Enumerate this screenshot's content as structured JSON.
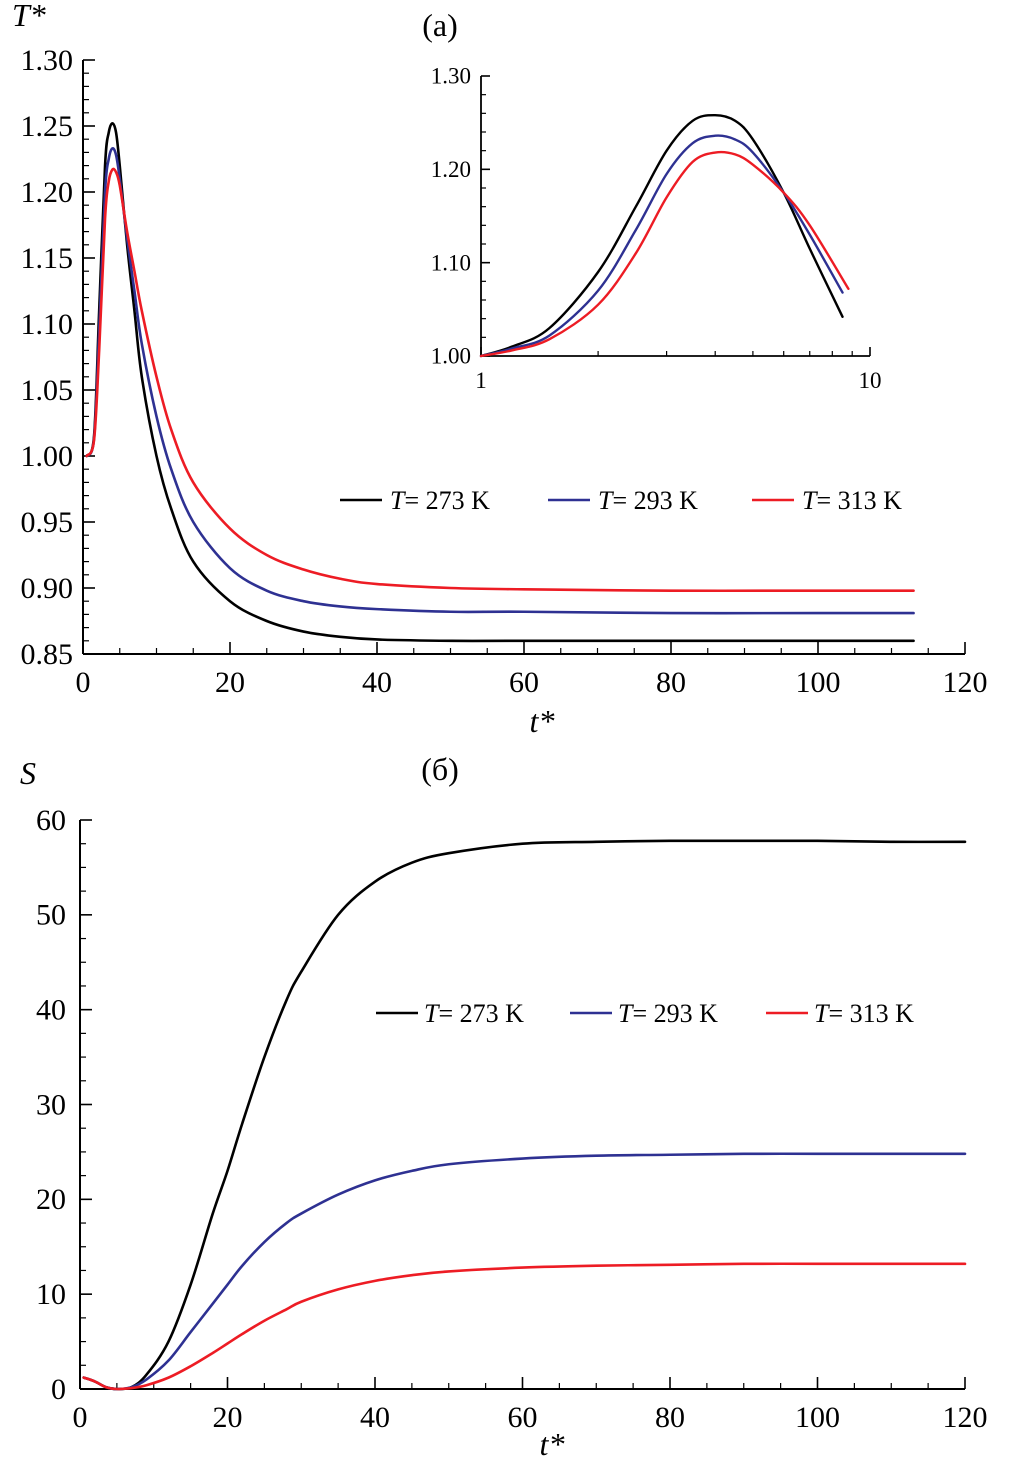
{
  "figure": {
    "background": "#ffffff",
    "axis_color": "#000000"
  },
  "chart_data": [
    {
      "id": "a",
      "type": "line",
      "panel_label": "(a)",
      "xlabel": "t*",
      "ylabel": "T*",
      "xlim": [
        0,
        120
      ],
      "ylim": [
        0.85,
        1.3
      ],
      "xticks": [
        0,
        20,
        40,
        60,
        80,
        100,
        120
      ],
      "yticks": [
        0.85,
        0.9,
        0.95,
        1.0,
        1.05,
        1.1,
        1.15,
        1.2,
        1.25,
        1.3
      ],
      "ytick_labels": [
        "0.85",
        "0.90",
        "0.95",
        "1.00",
        "1.05",
        "1.10",
        "1.15",
        "1.20",
        "1.25",
        "1.30"
      ],
      "legend": {
        "placement": "right-middle",
        "entries": [
          {
            "var": "T",
            "text": "= 273 K"
          },
          {
            "var": "T",
            "text": "= 293 K"
          },
          {
            "var": "T",
            "text": "= 313 K"
          }
        ]
      },
      "series": [
        {
          "name": "T = 273 K",
          "color": "#000000",
          "x": [
            0.5,
            1.5,
            2.2,
            3.0,
            3.5,
            4.0,
            4.5,
            5.0,
            6.0,
            7.0,
            8.0,
            10.0,
            12.0,
            15.0,
            20.0,
            25.0,
            30.0,
            35.0,
            40.0,
            50.0,
            60.0,
            80.0,
            100.0,
            113.0
          ],
          "y": [
            1.0,
            1.015,
            1.11,
            1.22,
            1.245,
            1.252,
            1.245,
            1.22,
            1.16,
            1.11,
            1.06,
            1.0,
            0.96,
            0.92,
            0.89,
            0.875,
            0.867,
            0.863,
            0.861,
            0.86,
            0.86,
            0.86,
            0.86,
            0.86
          ]
        },
        {
          "name": "T = 293 K",
          "color": "#2e3192",
          "x": [
            0.5,
            1.5,
            2.2,
            3.0,
            3.5,
            4.0,
            4.5,
            5.0,
            6.0,
            7.0,
            8.0,
            10.0,
            12.0,
            15.0,
            20.0,
            25.0,
            30.0,
            35.0,
            40.0,
            50.0,
            60.0,
            80.0,
            100.0,
            113.0
          ],
          "y": [
            1.0,
            1.013,
            1.095,
            1.2,
            1.225,
            1.233,
            1.228,
            1.21,
            1.165,
            1.125,
            1.085,
            1.03,
            0.99,
            0.95,
            0.915,
            0.898,
            0.89,
            0.886,
            0.884,
            0.882,
            0.882,
            0.881,
            0.881,
            0.881
          ]
        },
        {
          "name": "T = 313 K",
          "color": "#ed1c24",
          "x": [
            0.5,
            1.5,
            2.2,
            3.0,
            3.5,
            4.0,
            4.5,
            5.0,
            6.0,
            7.0,
            8.0,
            10.0,
            12.0,
            15.0,
            20.0,
            25.0,
            30.0,
            35.0,
            40.0,
            50.0,
            60.0,
            80.0,
            100.0,
            113.0
          ],
          "y": [
            1.0,
            1.012,
            1.08,
            1.18,
            1.208,
            1.217,
            1.215,
            1.205,
            1.17,
            1.14,
            1.11,
            1.06,
            1.02,
            0.98,
            0.945,
            0.925,
            0.914,
            0.907,
            0.903,
            0.9,
            0.899,
            0.898,
            0.898,
            0.898
          ]
        }
      ]
    },
    {
      "id": "a-inset",
      "type": "line",
      "xscale": "log",
      "xlim": [
        1,
        10
      ],
      "ylim": [
        1.0,
        1.3
      ],
      "xticks": [
        1,
        10
      ],
      "xtick_labels": [
        "1",
        "10"
      ],
      "yticks": [
        1.0,
        1.1,
        1.2,
        1.3
      ],
      "ytick_labels": [
        "1.00",
        "1.10",
        "1.20",
        "1.30"
      ],
      "series": [
        {
          "name": "T = 273 K",
          "color": "#000000",
          "x": [
            1.0,
            1.2,
            1.5,
            2.0,
            2.5,
            3.0,
            3.5,
            4.0,
            4.5,
            5.0,
            6.0,
            7.0,
            8.5
          ],
          "y": [
            1.0,
            1.01,
            1.03,
            1.09,
            1.16,
            1.22,
            1.252,
            1.258,
            1.252,
            1.232,
            1.175,
            1.115,
            1.042
          ]
        },
        {
          "name": "T = 293 K",
          "color": "#2e3192",
          "x": [
            1.0,
            1.2,
            1.5,
            2.0,
            2.5,
            3.0,
            3.5,
            4.0,
            4.5,
            5.0,
            6.0,
            7.0,
            8.5
          ],
          "y": [
            1.0,
            1.008,
            1.022,
            1.07,
            1.135,
            1.195,
            1.228,
            1.236,
            1.232,
            1.218,
            1.175,
            1.13,
            1.068
          ]
        },
        {
          "name": "T = 313 K",
          "color": "#ed1c24",
          "x": [
            1.0,
            1.2,
            1.5,
            2.0,
            2.5,
            3.0,
            3.5,
            4.0,
            4.5,
            5.0,
            6.0,
            7.0,
            8.8
          ],
          "y": [
            1.0,
            1.006,
            1.018,
            1.055,
            1.11,
            1.17,
            1.208,
            1.218,
            1.216,
            1.205,
            1.175,
            1.14,
            1.072
          ]
        }
      ]
    },
    {
      "id": "b",
      "type": "line",
      "panel_label": "(б)",
      "xlabel": "t*",
      "ylabel": "S",
      "xlim": [
        0,
        120
      ],
      "ylim": [
        0,
        60
      ],
      "xticks": [
        0,
        20,
        40,
        60,
        80,
        100,
        120
      ],
      "yticks": [
        0,
        10,
        20,
        30,
        40,
        50,
        60
      ],
      "ytick_labels": [
        "0",
        "10",
        "20",
        "30",
        "40",
        "50",
        "60"
      ],
      "legend": {
        "placement": "right-middle",
        "entries": [
          {
            "var": "T",
            "text": "= 273 K"
          },
          {
            "var": "T",
            "text": "= 293 K"
          },
          {
            "var": "T",
            "text": "= 313 K"
          }
        ]
      },
      "series": [
        {
          "name": "T = 273 K",
          "color": "#000000",
          "x": [
            0.5,
            2.0,
            3.5,
            5.0,
            7.0,
            9.0,
            12.0,
            15.0,
            18.0,
            20.0,
            22.0,
            25.0,
            28.0,
            30.0,
            35.0,
            40.0,
            45.0,
            50.0,
            60.0,
            70.0,
            80.0,
            90.0,
            100.0,
            110.0,
            120.0
          ],
          "y": [
            1.2,
            0.8,
            0.2,
            0.0,
            0.2,
            1.5,
            5.0,
            11.0,
            18.5,
            23.0,
            28.0,
            35.0,
            41.0,
            44.0,
            50.0,
            53.5,
            55.5,
            56.5,
            57.5,
            57.7,
            57.8,
            57.8,
            57.8,
            57.7,
            57.7
          ]
        },
        {
          "name": "T = 293 K",
          "color": "#2e3192",
          "x": [
            0.5,
            2.0,
            3.5,
            5.0,
            7.0,
            9.0,
            12.0,
            15.0,
            18.0,
            20.0,
            22.0,
            25.0,
            28.0,
            30.0,
            35.0,
            40.0,
            45.0,
            50.0,
            60.0,
            70.0,
            80.0,
            90.0,
            100.0,
            110.0,
            120.0
          ],
          "y": [
            1.2,
            0.8,
            0.2,
            0.0,
            0.2,
            1.0,
            3.0,
            6.0,
            9.0,
            11.0,
            13.0,
            15.5,
            17.5,
            18.5,
            20.5,
            22.0,
            23.0,
            23.7,
            24.3,
            24.6,
            24.7,
            24.8,
            24.8,
            24.8,
            24.8
          ]
        },
        {
          "name": "T = 313 K",
          "color": "#ed1c24",
          "x": [
            0.5,
            2.0,
            3.5,
            5.0,
            7.0,
            9.0,
            12.0,
            15.0,
            18.0,
            20.0,
            22.0,
            25.0,
            28.0,
            30.0,
            35.0,
            40.0,
            45.0,
            50.0,
            60.0,
            70.0,
            80.0,
            90.0,
            100.0,
            110.0,
            120.0
          ],
          "y": [
            1.2,
            0.8,
            0.2,
            0.0,
            0.1,
            0.4,
            1.2,
            2.4,
            3.8,
            4.8,
            5.8,
            7.2,
            8.4,
            9.2,
            10.5,
            11.4,
            12.0,
            12.4,
            12.8,
            13.0,
            13.1,
            13.2,
            13.2,
            13.2,
            13.2
          ]
        }
      ]
    }
  ]
}
